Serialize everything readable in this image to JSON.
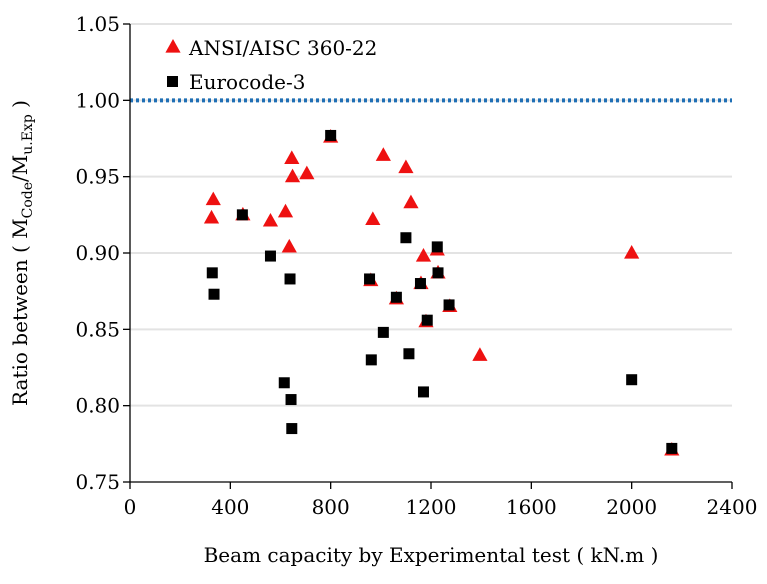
{
  "chart_data": {
    "type": "scatter",
    "title": "",
    "xlabel": "Beam capacity by Experimental test ( kN.m )",
    "ylabel": {
      "prefix": "Ratio between ( M",
      "sub1": "Code",
      "mid": "/M",
      "sub2": "u.Exp",
      "suffix": " )"
    },
    "xlim": [
      0,
      2400
    ],
    "ylim": [
      0.75,
      1.05
    ],
    "xticks": [
      0,
      400,
      800,
      1200,
      1600,
      2000,
      2400
    ],
    "yticks": [
      0.75,
      0.8,
      0.85,
      0.9,
      0.95,
      1.0,
      1.05
    ],
    "xtick_labels": [
      "0",
      "400",
      "800",
      "1200",
      "1600",
      "2000",
      "2400"
    ],
    "ytick_labels": [
      "0.75",
      "0.80",
      "0.85",
      "0.90",
      "0.95",
      "1.00",
      "1.05"
    ],
    "grid": true,
    "legend_position": "top-left",
    "reference_line": {
      "y": 1.0,
      "style": "dotted",
      "color": "#1f6fb5"
    },
    "series": [
      {
        "name": "ANSI/AISC 360-22",
        "marker": "triangle",
        "color": "#ee1111",
        "points": [
          [
            325,
            0.923
          ],
          [
            332,
            0.935
          ],
          [
            450,
            0.925
          ],
          [
            560,
            0.921
          ],
          [
            620,
            0.927
          ],
          [
            635,
            0.904
          ],
          [
            645,
            0.962
          ],
          [
            648,
            0.95
          ],
          [
            705,
            0.952
          ],
          [
            800,
            0.976
          ],
          [
            960,
            0.882
          ],
          [
            968,
            0.922
          ],
          [
            1010,
            0.964
          ],
          [
            1062,
            0.87
          ],
          [
            1100,
            0.956
          ],
          [
            1120,
            0.933
          ],
          [
            1160,
            0.88
          ],
          [
            1170,
            0.898
          ],
          [
            1180,
            0.855
          ],
          [
            1225,
            0.902
          ],
          [
            1228,
            0.887
          ],
          [
            1275,
            0.865
          ],
          [
            1395,
            0.833
          ],
          [
            2000,
            0.9
          ],
          [
            2160,
            0.771
          ]
        ]
      },
      {
        "name": "Eurocode-3",
        "marker": "square",
        "color": "#000000",
        "points": [
          [
            328,
            0.887
          ],
          [
            335,
            0.873
          ],
          [
            448,
            0.925
          ],
          [
            560,
            0.898
          ],
          [
            615,
            0.815
          ],
          [
            638,
            0.883
          ],
          [
            642,
            0.804
          ],
          [
            645,
            0.785
          ],
          [
            800,
            0.977
          ],
          [
            955,
            0.883
          ],
          [
            962,
            0.83
          ],
          [
            1010,
            0.848
          ],
          [
            1062,
            0.871
          ],
          [
            1100,
            0.91
          ],
          [
            1112,
            0.834
          ],
          [
            1158,
            0.88
          ],
          [
            1170,
            0.809
          ],
          [
            1185,
            0.856
          ],
          [
            1225,
            0.904
          ],
          [
            1228,
            0.887
          ],
          [
            1272,
            0.866
          ],
          [
            2000,
            0.817
          ],
          [
            2160,
            0.772
          ]
        ]
      }
    ]
  }
}
